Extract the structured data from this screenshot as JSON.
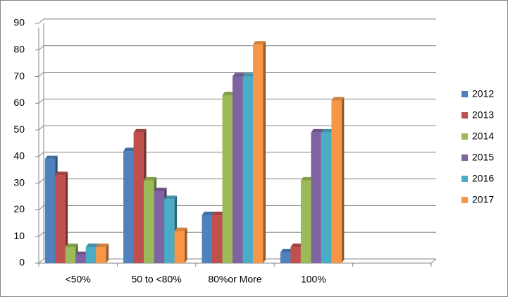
{
  "chart_data": {
    "type": "bar3d",
    "categories": [
      "<50%",
      "50 to <80%",
      "80%or More",
      "100%",
      null
    ],
    "series": [
      {
        "name": "2012",
        "color": "#4f81bd",
        "values": [
          39,
          42,
          18,
          4,
          null
        ]
      },
      {
        "name": "2013",
        "color": "#c0504d",
        "values": [
          33,
          49,
          18,
          6,
          null
        ]
      },
      {
        "name": "2014",
        "color": "#9bbb59",
        "values": [
          6,
          31,
          63,
          31,
          null
        ]
      },
      {
        "name": "2015",
        "color": "#8064a2",
        "values": [
          3,
          27,
          70,
          49,
          null
        ]
      },
      {
        "name": "2016",
        "color": "#4bacc6",
        "values": [
          6,
          24,
          70,
          49,
          null
        ]
      },
      {
        "name": "2017",
        "color": "#f79646",
        "values": [
          6,
          12,
          82,
          61,
          null
        ]
      }
    ],
    "ylim": [
      0,
      90
    ],
    "yticks": [
      0,
      10,
      20,
      30,
      40,
      50,
      60,
      70,
      80,
      90
    ],
    "grid": true,
    "legend": "right"
  }
}
